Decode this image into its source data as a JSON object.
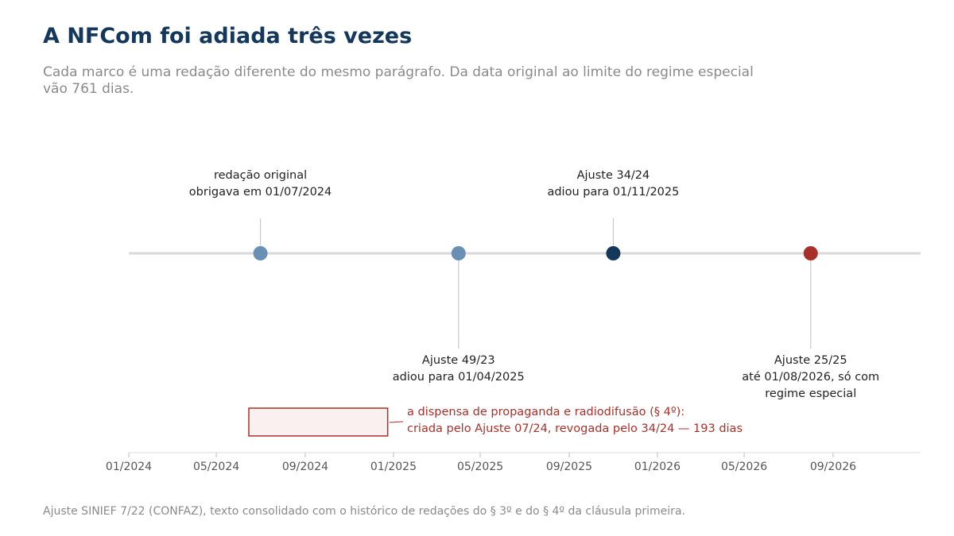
{
  "title": "A NFCom foi adiada três vezes",
  "subtitle": "Cada marco é uma redação diferente do mesmo parágrafo. Da data original ao limite do regime especial vão 761 dias.",
  "source": "Ajuste SINIEF 7/22 (CONFAZ), texto consolidado com o histórico de redações do § 3º e do § 4º da cláusula primeira.",
  "colors": {
    "title": "#14375c",
    "muted": "#8a8a8a",
    "axis_line": "#d9d9d9",
    "point_light": "#6a8fb5",
    "point_dark": "#14375c",
    "point_red": "#a8302a",
    "range_fill": "#faf0ef"
  },
  "chart_data": {
    "type": "timeline",
    "x_axis": {
      "type": "date",
      "range": [
        "2024-01-01",
        "2026-12-31"
      ],
      "ticks": [
        {
          "date": "2024-01-01",
          "label": "01/2024"
        },
        {
          "date": "2024-05-01",
          "label": "05/2024"
        },
        {
          "date": "2024-09-01",
          "label": "09/2024"
        },
        {
          "date": "2025-01-01",
          "label": "01/2025"
        },
        {
          "date": "2025-05-01",
          "label": "05/2025"
        },
        {
          "date": "2025-09-01",
          "label": "09/2025"
        },
        {
          "date": "2026-01-01",
          "label": "01/2026"
        },
        {
          "date": "2026-05-01",
          "label": "05/2026"
        },
        {
          "date": "2026-09-01",
          "label": "09/2026"
        }
      ]
    },
    "milestones": [
      {
        "date": "2024-07-01",
        "lines": [
          "redação original",
          "obrigava em 01/07/2024"
        ],
        "position": "above",
        "color": "#6a8fb5"
      },
      {
        "date": "2025-04-01",
        "lines": [
          "Ajuste 49/23",
          "adiou para 01/04/2025"
        ],
        "position": "below",
        "color": "#6a8fb5"
      },
      {
        "date": "2025-11-01",
        "lines": [
          "Ajuste 34/24",
          "adiou para 01/11/2025"
        ],
        "position": "above",
        "color": "#14375c"
      },
      {
        "date": "2026-08-01",
        "lines": [
          "Ajuste 25/25",
          "até 01/08/2026, só com",
          "regime especial"
        ],
        "position": "below",
        "color": "#a8302a"
      }
    ],
    "range": {
      "start": "2024-06-15",
      "end": "2024-12-24",
      "lines": [
        "a dispensa de propaganda e radiodifusão (§ 4º):",
        "criada pelo Ajuste 07/24, revogada pelo 34/24 — 193 dias"
      ],
      "color": "#a8302a"
    }
  }
}
